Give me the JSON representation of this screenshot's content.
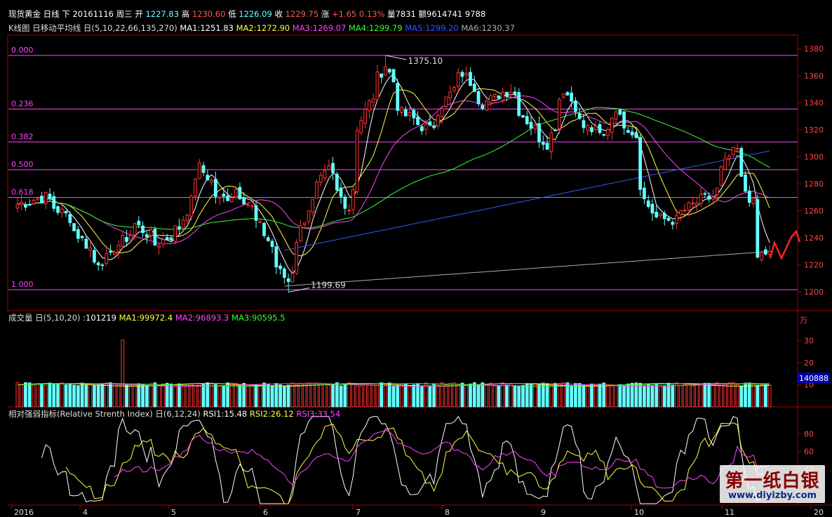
{
  "header": {
    "line1": [
      {
        "text": "现货黄金",
        "color": "#ffffff"
      },
      {
        "text": "日线",
        "color": "#ffffff"
      },
      {
        "text": "下",
        "color": "#ffffff"
      },
      {
        "text": "20161116",
        "color": "#ffffff"
      },
      {
        "text": "周三",
        "color": "#ffffff"
      },
      {
        "text": "开",
        "color": "#ffffff"
      },
      {
        "text": "1227.83",
        "color": "#66ffff"
      },
      {
        "text": "高",
        "color": "#ffffff"
      },
      {
        "text": "1230.60",
        "color": "#ff5555"
      },
      {
        "text": "低",
        "color": "#ffffff"
      },
      {
        "text": "1226.09",
        "color": "#66ffff"
      },
      {
        "text": "收",
        "color": "#ffffff"
      },
      {
        "text": "1229.75",
        "color": "#ff5555"
      },
      {
        "text": "涨",
        "color": "#ffffff"
      },
      {
        "text": "+1.65",
        "color": "#ff5555"
      },
      {
        "text": "0.13%",
        "color": "#ff5555"
      },
      {
        "text": "量7831",
        "color": "#ffffff"
      },
      {
        "text": "额9614741",
        "color": "#ffffff"
      },
      {
        "text": "9788",
        "color": "#ffffff"
      }
    ],
    "line2": [
      {
        "text": "K线图",
        "color": "#dddddd"
      },
      {
        "text": "日移动平均线",
        "color": "#dddddd"
      },
      {
        "text": "日(5,10,22,66,135,270)",
        "color": "#dddddd"
      },
      {
        "text": "MA1:1251.83",
        "color": "#ffffff"
      },
      {
        "text": "MA2:1272.90",
        "color": "#ffff44"
      },
      {
        "text": "MA3:1269.07",
        "color": "#ff44ff"
      },
      {
        "text": "MA4:1299.79",
        "color": "#33ff33"
      },
      {
        "text": "MA5:1299.20",
        "color": "#3355ff"
      },
      {
        "text": "MA6:1230.37",
        "color": "#aaaaaa"
      }
    ]
  },
  "volume_header": [
    {
      "text": "成交量",
      "color": "#dddddd"
    },
    {
      "text": "日(5,10,20)",
      "color": "#dddddd"
    },
    {
      "text": ":101219",
      "color": "#ffffff"
    },
    {
      "text": "MA1:99972.4",
      "color": "#ffff44"
    },
    {
      "text": "MA2:96893.3",
      "color": "#ff44ff"
    },
    {
      "text": "MA3:90595.5",
      "color": "#33ff33"
    }
  ],
  "rsi_header": [
    {
      "text": "相对强弱指标(Relative Strenth Index)",
      "color": "#dddddd"
    },
    {
      "text": "日(6,12,24)",
      "color": "#dddddd"
    },
    {
      "text": "RSI1:15.48",
      "color": "#ffffff"
    },
    {
      "text": "RSI2:26.12",
      "color": "#ffff44"
    },
    {
      "text": "RSI3:33.54",
      "color": "#ff44ff"
    }
  ],
  "price_axis": {
    "min": 1190,
    "max": 1385,
    "ticks": [
      "1380",
      "1360",
      "1340",
      "1320",
      "1300",
      "1280",
      "1260",
      "1240",
      "1220",
      "1200"
    ]
  },
  "volume_axis": {
    "unit": "万",
    "max": 35,
    "ticks": [
      "30",
      "20",
      "10"
    ],
    "current_label": "140888"
  },
  "rsi_axis": {
    "min": 0,
    "max": 95,
    "ticks": [
      "80",
      "60",
      "40"
    ]
  },
  "x_axis_labels": [
    "2016",
    "4",
    "5",
    "6",
    "7",
    "8",
    "9",
    "10",
    "11",
    "20"
  ],
  "fibonacci": {
    "levels": [
      {
        "label": "0.000",
        "price": 1375.1
      },
      {
        "label": "0.236",
        "price": 1335.4
      },
      {
        "label": "0.382",
        "price": 1311.0
      },
      {
        "label": "0.500",
        "price": 1290.4
      },
      {
        "label": "0.618",
        "price": 1269.8
      },
      {
        "label": "1.000",
        "price": 1201.5
      }
    ],
    "color": "#ff44ff"
  },
  "annotations": {
    "high_label": "1375.10",
    "low_label": "1199.69"
  },
  "watermark": {
    "title": "第一纸白银",
    "url": "www.diyizby.com"
  },
  "chart_data": {
    "type": "candlestick",
    "title": "现货黄金 日线",
    "start_date": "2016-03-01",
    "up_color": "#ff3333",
    "down_color": "#66ffff",
    "candles": [],
    "moving_averages": [
      {
        "name": "MA1",
        "period": 5,
        "color": "#ffffff"
      },
      {
        "name": "MA2",
        "period": 10,
        "color": "#ffff44"
      },
      {
        "name": "MA3",
        "period": 22,
        "color": "#ff44ff"
      },
      {
        "name": "MA4",
        "period": 66,
        "color": "#33ff33"
      },
      {
        "name": "MA5",
        "period": 135,
        "color": "#3355ff"
      },
      {
        "name": "MA6",
        "period": 270,
        "color": "#aaaaaa"
      }
    ],
    "close_path": [
      {
        "date": "2016-03-01",
        "close": 1265
      },
      {
        "date": "2016-03-10",
        "close": 1270
      },
      {
        "date": "2016-03-18",
        "close": 1255
      },
      {
        "date": "2016-03-28",
        "close": 1222
      },
      {
        "date": "2016-04-01",
        "close": 1225
      },
      {
        "date": "2016-04-11",
        "close": 1250
      },
      {
        "date": "2016-04-18",
        "close": 1235
      },
      {
        "date": "2016-04-26",
        "close": 1248
      },
      {
        "date": "2016-05-03",
        "close": 1292
      },
      {
        "date": "2016-05-10",
        "close": 1268
      },
      {
        "date": "2016-05-16",
        "close": 1276
      },
      {
        "date": "2016-05-24",
        "close": 1248
      },
      {
        "date": "2016-05-31",
        "close": 1214
      },
      {
        "date": "2016-06-02",
        "close": 1208
      },
      {
        "date": "2016-06-09",
        "close": 1262
      },
      {
        "date": "2016-06-16",
        "close": 1290
      },
      {
        "date": "2016-06-23",
        "close": 1262
      },
      {
        "date": "2016-06-27",
        "close": 1322
      },
      {
        "date": "2016-07-01",
        "close": 1345
      },
      {
        "date": "2016-07-06",
        "close": 1368
      },
      {
        "date": "2016-07-12",
        "close": 1332
      },
      {
        "date": "2016-07-21",
        "close": 1320
      },
      {
        "date": "2016-07-29",
        "close": 1350
      },
      {
        "date": "2016-08-02",
        "close": 1362
      },
      {
        "date": "2016-08-09",
        "close": 1340
      },
      {
        "date": "2016-08-18",
        "close": 1350
      },
      {
        "date": "2016-08-25",
        "close": 1323
      },
      {
        "date": "2016-08-31",
        "close": 1310
      },
      {
        "date": "2016-09-06",
        "close": 1350
      },
      {
        "date": "2016-09-13",
        "close": 1322
      },
      {
        "date": "2016-09-20",
        "close": 1315
      },
      {
        "date": "2016-09-23",
        "close": 1337
      },
      {
        "date": "2016-09-30",
        "close": 1316
      },
      {
        "date": "2016-10-04",
        "close": 1268
      },
      {
        "date": "2016-10-07",
        "close": 1255
      },
      {
        "date": "2016-10-14",
        "close": 1253
      },
      {
        "date": "2016-10-21",
        "close": 1266
      },
      {
        "date": "2016-10-27",
        "close": 1270
      },
      {
        "date": "2016-11-02",
        "close": 1300
      },
      {
        "date": "2016-11-04",
        "close": 1305
      },
      {
        "date": "2016-11-08",
        "close": 1275
      },
      {
        "date": "2016-11-10",
        "close": 1265
      },
      {
        "date": "2016-11-11",
        "close": 1225
      },
      {
        "date": "2016-11-16",
        "close": 1229.75
      }
    ]
  }
}
